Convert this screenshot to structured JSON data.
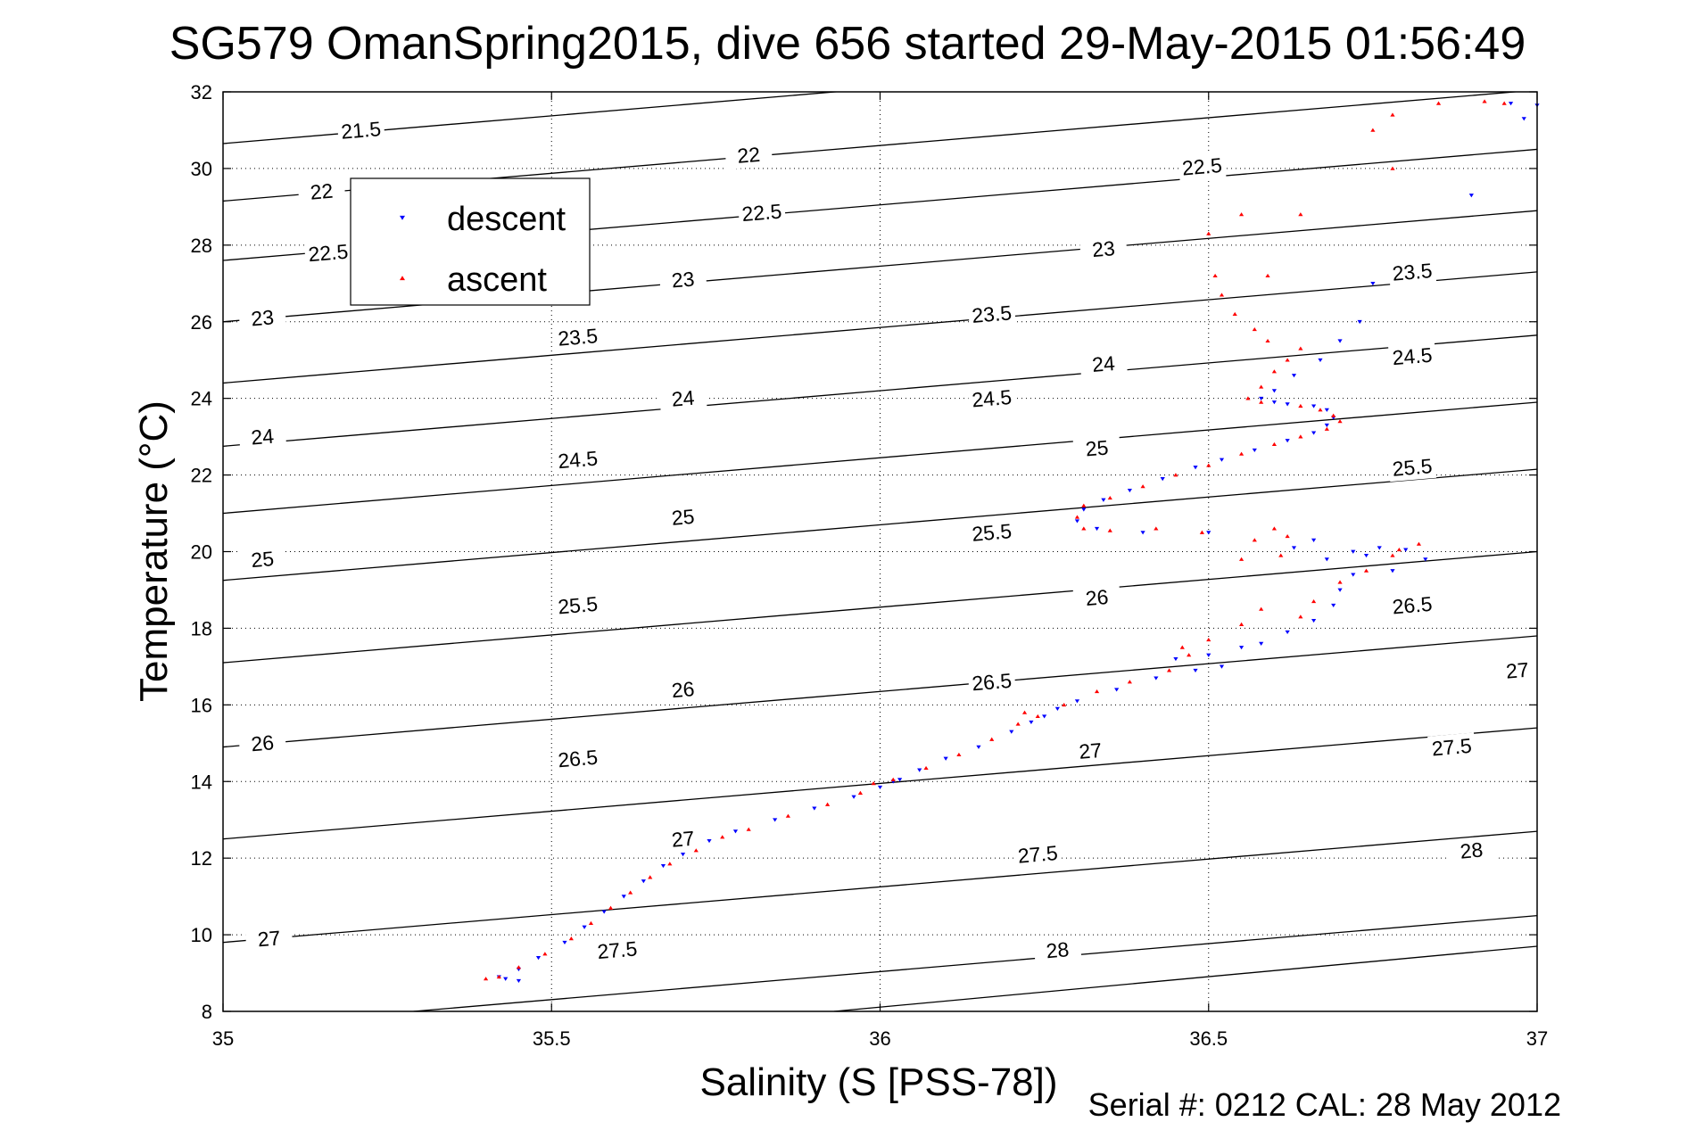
{
  "chart_data": {
    "type": "scatter",
    "title": "SG579 OmanSpring2015, dive 656 started 29-May-2015 01:56:49",
    "xlabel": "Salinity (S [PSS-78])",
    "ylabel": "Temperature (°C)",
    "footer": "Serial #: 0212  CAL: 28 May 2012",
    "xlim": [
      35,
      37
    ],
    "ylim": [
      8,
      32
    ],
    "x_ticks": [
      35,
      35.5,
      36,
      36.5,
      37
    ],
    "x_tick_labels": [
      "35",
      "35.5",
      "36",
      "36.5",
      "37"
    ],
    "y_ticks": [
      8,
      10,
      12,
      14,
      16,
      18,
      20,
      22,
      24,
      26,
      28,
      30,
      32
    ],
    "y_tick_labels": [
      "8",
      "10",
      "12",
      "14",
      "16",
      "18",
      "20",
      "22",
      "24",
      "26",
      "28",
      "30",
      "32"
    ],
    "grid": true,
    "legend_position": "top-left",
    "contours": [
      {
        "value": 21.5,
        "x": [
          35,
          37
        ],
        "y": [
          30.65,
          33.55
        ],
        "labels": [
          [
            35.21,
            31.0
          ]
        ]
      },
      {
        "value": 22,
        "x": [
          35,
          37
        ],
        "y": [
          29.15,
          32.05
        ],
        "labels": [
          [
            35.15,
            29.4
          ],
          [
            35.8,
            30.35
          ]
        ]
      },
      {
        "value": 22.5,
        "x": [
          35,
          37
        ],
        "y": [
          27.6,
          30.5
        ],
        "labels": [
          [
            35.16,
            27.8
          ],
          [
            35.82,
            28.85
          ],
          [
            36.49,
            30.05
          ]
        ]
      },
      {
        "value": 23,
        "x": [
          35,
          37
        ],
        "y": [
          26.0,
          28.9
        ],
        "labels": [
          [
            35.06,
            26.1
          ],
          [
            35.7,
            27.1
          ],
          [
            36.34,
            27.9
          ]
        ]
      },
      {
        "value": 23.5,
        "x": [
          35,
          37
        ],
        "y": [
          24.4,
          27.3
        ],
        "labels": [
          [
            35.54,
            25.6
          ],
          [
            36.17,
            26.2
          ],
          [
            36.81,
            27.3
          ]
        ]
      },
      {
        "value": 24,
        "x": [
          35,
          37
        ],
        "y": [
          22.75,
          25.65
        ],
        "labels": [
          [
            35.06,
            23.0
          ],
          [
            35.7,
            24.0
          ],
          [
            36.34,
            24.9
          ]
        ]
      },
      {
        "value": 24.5,
        "x": [
          35,
          37
        ],
        "y": [
          21.0,
          23.9
        ],
        "labels": [
          [
            35.54,
            22.4
          ],
          [
            36.17,
            24.0
          ],
          [
            36.81,
            25.1
          ]
        ]
      },
      {
        "value": 25,
        "x": [
          35,
          37
        ],
        "y": [
          19.25,
          22.15
        ],
        "labels": [
          [
            35.06,
            19.8
          ],
          [
            35.7,
            20.9
          ],
          [
            36.33,
            22.7
          ]
        ]
      },
      {
        "value": 25.5,
        "x": [
          35,
          37
        ],
        "y": [
          17.1,
          20.0
        ],
        "labels": [
          [
            35.54,
            18.6
          ],
          [
            36.17,
            20.5
          ],
          [
            36.81,
            22.2
          ]
        ]
      },
      {
        "value": 26,
        "x": [
          35,
          37
        ],
        "y": [
          14.9,
          17.8
        ],
        "labels": [
          [
            35.06,
            15.0
          ],
          [
            35.7,
            16.4
          ],
          [
            36.33,
            18.8
          ]
        ]
      },
      {
        "value": 26.5,
        "x": [
          35,
          37
        ],
        "y": [
          12.5,
          15.4
        ],
        "labels": [
          [
            35.54,
            14.6
          ],
          [
            36.17,
            16.6
          ],
          [
            36.81,
            18.6
          ]
        ]
      },
      {
        "value": 27,
        "x": [
          35,
          37
        ],
        "y": [
          9.8,
          12.7
        ],
        "labels": [
          [
            35.07,
            9.9
          ],
          [
            35.7,
            12.5
          ],
          [
            36.32,
            14.8
          ],
          [
            36.97,
            16.9
          ]
        ]
      },
      {
        "value": 27.5,
        "x": [
          35.29,
          37
        ],
        "y": [
          8.0,
          10.5
        ],
        "labels": [
          [
            35.6,
            9.6
          ],
          [
            36.24,
            12.1
          ],
          [
            36.87,
            14.9
          ]
        ]
      },
      {
        "value": 28,
        "x": [
          35.93,
          37
        ],
        "y": [
          8.0,
          9.7
        ],
        "labels": [
          [
            36.27,
            9.6
          ],
          [
            36.9,
            12.2
          ]
        ]
      }
    ],
    "series": [
      {
        "name": "descent",
        "marker": "triangle-down",
        "color": "#0000ff",
        "points": [
          [
            35.45,
            8.8
          ],
          [
            35.43,
            8.85
          ],
          [
            35.42,
            8.9
          ],
          [
            35.45,
            9.1
          ],
          [
            35.48,
            9.4
          ],
          [
            35.52,
            9.8
          ],
          [
            35.55,
            10.2
          ],
          [
            35.58,
            10.6
          ],
          [
            35.61,
            11.0
          ],
          [
            35.64,
            11.4
          ],
          [
            35.67,
            11.8
          ],
          [
            35.7,
            12.1
          ],
          [
            35.74,
            12.45
          ],
          [
            35.78,
            12.7
          ],
          [
            35.84,
            13.0
          ],
          [
            35.9,
            13.3
          ],
          [
            35.96,
            13.6
          ],
          [
            36.0,
            13.85
          ],
          [
            36.02,
            14.0
          ],
          [
            36.03,
            14.05
          ],
          [
            36.06,
            14.3
          ],
          [
            36.1,
            14.6
          ],
          [
            36.15,
            14.9
          ],
          [
            36.2,
            15.3
          ],
          [
            36.23,
            15.55
          ],
          [
            36.25,
            15.7
          ],
          [
            36.27,
            15.9
          ],
          [
            36.3,
            16.1
          ],
          [
            36.36,
            16.4
          ],
          [
            36.42,
            16.7
          ],
          [
            36.48,
            16.9
          ],
          [
            36.5,
            17.3
          ],
          [
            36.55,
            17.5
          ],
          [
            36.45,
            17.2
          ],
          [
            36.52,
            17.0
          ],
          [
            36.58,
            17.6
          ],
          [
            36.62,
            17.9
          ],
          [
            36.66,
            18.2
          ],
          [
            36.69,
            18.6
          ],
          [
            36.7,
            19.0
          ],
          [
            36.72,
            19.4
          ],
          [
            36.68,
            19.8
          ],
          [
            36.63,
            20.1
          ],
          [
            36.66,
            20.3
          ],
          [
            36.72,
            20.0
          ],
          [
            36.78,
            19.5
          ],
          [
            36.83,
            19.8
          ],
          [
            36.8,
            20.05
          ],
          [
            36.76,
            20.1
          ],
          [
            36.74,
            19.9
          ],
          [
            36.5,
            20.5
          ],
          [
            36.4,
            20.5
          ],
          [
            36.33,
            20.6
          ],
          [
            36.3,
            20.8
          ],
          [
            36.31,
            21.1
          ],
          [
            36.34,
            21.35
          ],
          [
            36.38,
            21.6
          ],
          [
            36.43,
            21.9
          ],
          [
            36.48,
            22.2
          ],
          [
            36.52,
            22.4
          ],
          [
            36.57,
            22.65
          ],
          [
            36.62,
            22.9
          ],
          [
            36.66,
            23.1
          ],
          [
            36.68,
            23.3
          ],
          [
            36.69,
            23.5
          ],
          [
            36.68,
            23.7
          ],
          [
            36.66,
            23.8
          ],
          [
            36.62,
            23.85
          ],
          [
            36.6,
            23.9
          ],
          [
            36.58,
            24.0
          ],
          [
            36.6,
            24.2
          ],
          [
            36.63,
            24.6
          ],
          [
            36.67,
            25.0
          ],
          [
            36.7,
            25.5
          ],
          [
            36.73,
            26.0
          ],
          [
            36.75,
            27.0
          ],
          [
            36.9,
            29.3
          ],
          [
            36.98,
            31.3
          ],
          [
            36.96,
            31.7
          ],
          [
            37.0,
            31.65
          ]
        ]
      },
      {
        "name": "ascent",
        "marker": "triangle-up",
        "color": "#ff0000",
        "points": [
          [
            35.4,
            8.85
          ],
          [
            35.42,
            8.9
          ],
          [
            35.45,
            9.15
          ],
          [
            35.49,
            9.5
          ],
          [
            35.53,
            9.9
          ],
          [
            35.56,
            10.3
          ],
          [
            35.59,
            10.7
          ],
          [
            35.62,
            11.1
          ],
          [
            35.65,
            11.5
          ],
          [
            35.68,
            11.85
          ],
          [
            35.72,
            12.2
          ],
          [
            35.76,
            12.55
          ],
          [
            35.8,
            12.75
          ],
          [
            35.86,
            13.1
          ],
          [
            35.92,
            13.4
          ],
          [
            35.97,
            13.7
          ],
          [
            35.99,
            13.95
          ],
          [
            36.02,
            14.05
          ],
          [
            36.07,
            14.35
          ],
          [
            36.12,
            14.7
          ],
          [
            36.17,
            15.1
          ],
          [
            36.21,
            15.5
          ],
          [
            36.22,
            15.8
          ],
          [
            36.24,
            15.7
          ],
          [
            36.28,
            16.0
          ],
          [
            36.33,
            16.35
          ],
          [
            36.38,
            16.6
          ],
          [
            36.44,
            16.9
          ],
          [
            36.47,
            17.3
          ],
          [
            36.46,
            17.5
          ],
          [
            36.5,
            17.7
          ],
          [
            36.55,
            18.1
          ],
          [
            36.58,
            18.5
          ],
          [
            36.64,
            18.3
          ],
          [
            36.66,
            18.7
          ],
          [
            36.7,
            19.2
          ],
          [
            36.74,
            19.5
          ],
          [
            36.78,
            19.9
          ],
          [
            36.82,
            20.2
          ],
          [
            36.79,
            20.05
          ],
          [
            36.61,
            19.9
          ],
          [
            36.55,
            19.8
          ],
          [
            36.57,
            20.3
          ],
          [
            36.6,
            20.6
          ],
          [
            36.62,
            20.4
          ],
          [
            36.49,
            20.5
          ],
          [
            36.42,
            20.6
          ],
          [
            36.35,
            20.55
          ],
          [
            36.31,
            20.6
          ],
          [
            36.3,
            20.9
          ],
          [
            36.31,
            21.2
          ],
          [
            36.35,
            21.4
          ],
          [
            36.4,
            21.7
          ],
          [
            36.45,
            22.0
          ],
          [
            36.5,
            22.25
          ],
          [
            36.55,
            22.55
          ],
          [
            36.6,
            22.8
          ],
          [
            36.64,
            23.0
          ],
          [
            36.68,
            23.2
          ],
          [
            36.7,
            23.4
          ],
          [
            36.69,
            23.55
          ],
          [
            36.67,
            23.7
          ],
          [
            36.64,
            23.8
          ],
          [
            36.58,
            23.9
          ],
          [
            36.56,
            24.0
          ],
          [
            36.58,
            24.3
          ],
          [
            36.6,
            24.7
          ],
          [
            36.62,
            25.0
          ],
          [
            36.64,
            25.3
          ],
          [
            36.59,
            25.5
          ],
          [
            36.57,
            25.8
          ],
          [
            36.54,
            26.2
          ],
          [
            36.52,
            26.7
          ],
          [
            36.51,
            27.2
          ],
          [
            36.5,
            28.3
          ],
          [
            36.55,
            28.8
          ],
          [
            36.64,
            28.8
          ],
          [
            36.59,
            27.2
          ],
          [
            36.78,
            30.0
          ],
          [
            36.75,
            31.0
          ],
          [
            36.78,
            31.4
          ],
          [
            36.85,
            31.7
          ],
          [
            36.92,
            31.75
          ],
          [
            36.95,
            31.7
          ]
        ]
      }
    ]
  }
}
